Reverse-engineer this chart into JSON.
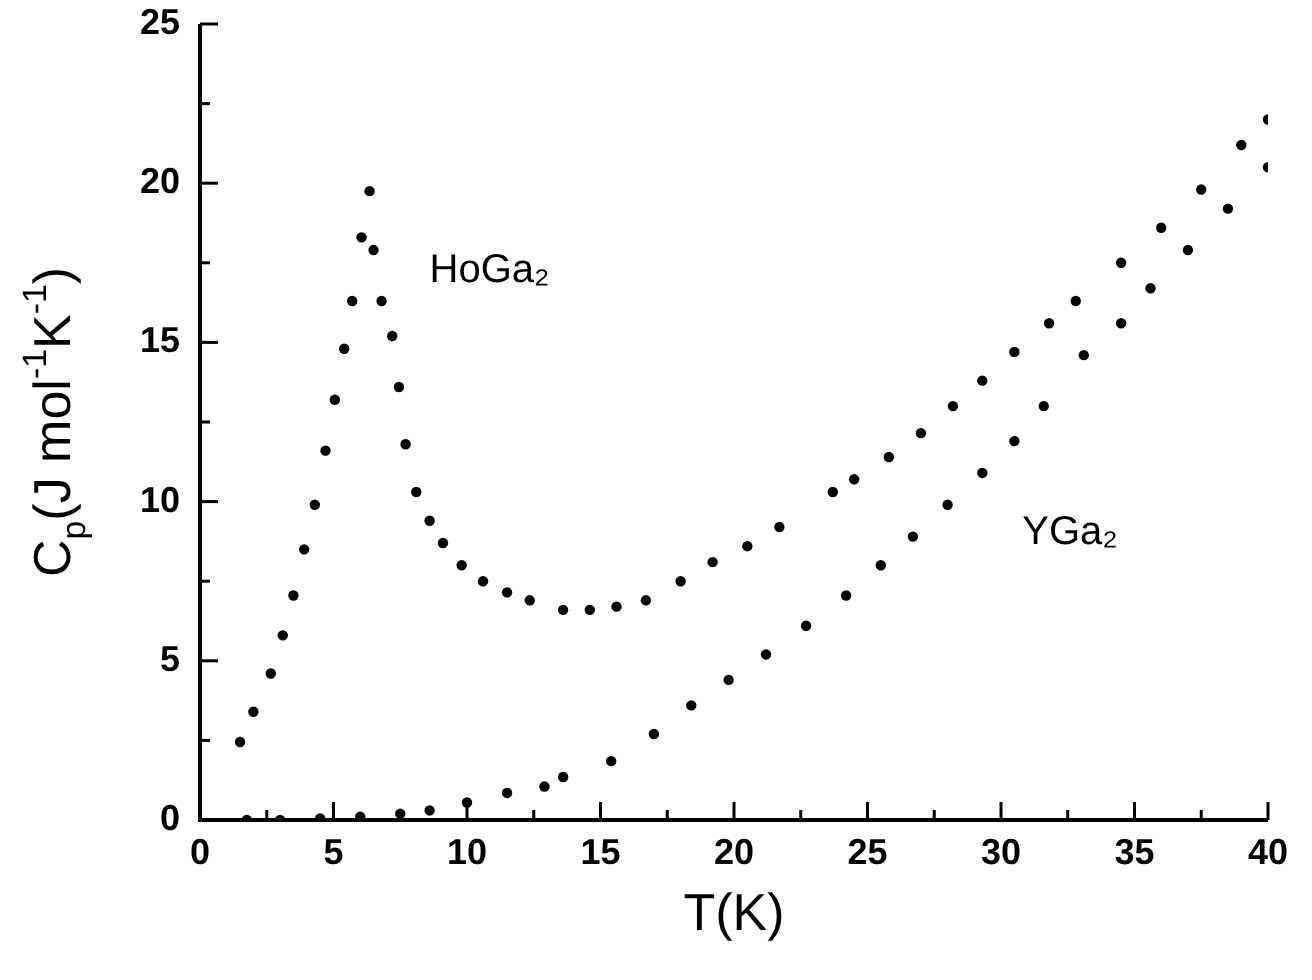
{
  "chart_data": {
    "type": "scatter",
    "xlabel": "T(K)",
    "ylabel": "C$_{p}$(J mol$^{-1}$K$^{-1}$)",
    "xlim": [
      0,
      40
    ],
    "ylim": [
      0,
      25
    ],
    "xticks": [
      0,
      {
        "value": 2.5,
        "label": null
      },
      5,
      {
        "value": 7.5,
        "label": null
      },
      10,
      {
        "value": 12.5,
        "label": null
      },
      15,
      {
        "value": 17.5,
        "label": null
      },
      20,
      {
        "value": 22.5,
        "label": null
      },
      25,
      {
        "value": 27.5,
        "label": null
      },
      30,
      {
        "value": 32.5,
        "label": null
      },
      35,
      {
        "value": 37.5,
        "label": null
      },
      40
    ],
    "yticks": [
      0,
      {
        "value": 2.5,
        "label": null
      },
      5,
      {
        "value": 7.5,
        "label": null
      },
      10,
      {
        "value": 12.5,
        "label": null
      },
      15,
      {
        "value": 17.5,
        "label": null
      },
      20,
      {
        "value": 22.5,
        "label": null
      },
      25
    ],
    "grid": false,
    "legend": false,
    "marker": "circle",
    "series": [
      {
        "name": "HoGa₂",
        "color": "#000000",
        "x": [
          1.5,
          2.0,
          2.65,
          3.1,
          3.5,
          3.9,
          4.3,
          4.7,
          5.05,
          5.4,
          5.7,
          6.05,
          6.35,
          6.5,
          6.8,
          7.2,
          7.45,
          7.7,
          8.1,
          8.6,
          9.1,
          9.8,
          10.6,
          11.5,
          12.35,
          13.6,
          14.6,
          15.6,
          16.7,
          18.0,
          19.2,
          20.5,
          21.7,
          23.7,
          24.5,
          25.8,
          27.0,
          28.2,
          29.3,
          30.5,
          31.8,
          32.8,
          34.5,
          36.0,
          37.5,
          39.0,
          40.0
        ],
        "values": [
          2.45,
          3.4,
          4.6,
          5.8,
          7.05,
          8.5,
          9.9,
          11.6,
          13.2,
          14.8,
          16.3,
          18.3,
          19.75,
          17.9,
          16.3,
          15.2,
          13.6,
          11.8,
          10.3,
          9.4,
          8.7,
          8.0,
          7.5,
          7.15,
          6.9,
          6.6,
          6.6,
          6.7,
          6.9,
          7.5,
          8.1,
          8.6,
          9.2,
          10.3,
          10.7,
          11.4,
          12.15,
          13.0,
          13.8,
          14.7,
          15.6,
          16.3,
          17.5,
          18.6,
          19.8,
          21.2,
          22.0
        ]
      },
      {
        "name": "YGa₂",
        "color": "#000000",
        "x": [
          1.75,
          3.0,
          4.5,
          6.0,
          7.5,
          8.6,
          10.0,
          11.5,
          12.9,
          13.6,
          15.4,
          17.0,
          18.4,
          19.8,
          21.2,
          22.7,
          24.2,
          25.5,
          26.7,
          28.0,
          29.3,
          30.5,
          31.6,
          33.1,
          34.5,
          35.6,
          37.0,
          38.5,
          40.0
        ],
        "values": [
          0.0,
          0.0,
          0.05,
          0.1,
          0.2,
          0.3,
          0.55,
          0.85,
          1.05,
          1.35,
          1.85,
          2.7,
          3.6,
          4.4,
          5.2,
          6.1,
          7.05,
          8.0,
          8.9,
          9.9,
          10.9,
          11.9,
          13.0,
          14.6,
          15.6,
          16.7,
          17.9,
          19.2,
          20.5
        ]
      }
    ]
  }
}
